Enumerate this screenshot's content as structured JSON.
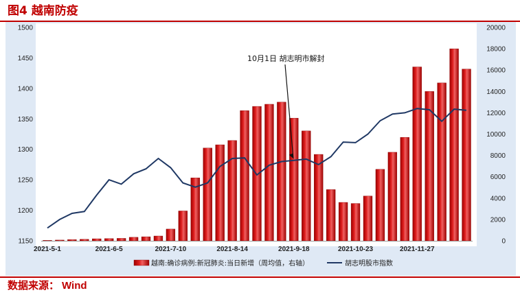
{
  "header": {
    "title": "图4 越南防疫"
  },
  "footer": {
    "source_label": "数据来源：",
    "source_value": "Wind"
  },
  "colors": {
    "accent": "#c00000",
    "bar": "#c00000",
    "line": "#1f3864",
    "panel": "#dfe9f5"
  },
  "chart_data": {
    "type": "bar+line",
    "title": "",
    "x_tick_labels": [
      "2021-5-1",
      "2021-6-5",
      "2021-7-10",
      "2021-8-14",
      "2021-9-18",
      "2021-10-23",
      "2021-11-27"
    ],
    "x_tick_positions": [
      0,
      5,
      10,
      15,
      20,
      25,
      30
    ],
    "left_axis": {
      "ylim": [
        1150,
        1500
      ],
      "ticks": [
        1150,
        1200,
        1250,
        1300,
        1350,
        1400,
        1450,
        1500
      ]
    },
    "right_axis": {
      "ylim": [
        0,
        20000
      ],
      "ticks": [
        0,
        2000,
        4000,
        6000,
        8000,
        10000,
        12000,
        14000,
        16000,
        18000,
        20000
      ]
    },
    "annotation": {
      "text": "10月1日 胡志明市解封",
      "at_index": 20
    },
    "legend": {
      "position": "bottom"
    },
    "series": [
      {
        "name": "越南:确诊病例:新冠肺炎:当日新增（周均值，右轴）",
        "type": "bar",
        "axis": "right",
        "values": [
          40,
          70,
          110,
          140,
          190,
          210,
          230,
          330,
          380,
          450,
          1100,
          2800,
          5900,
          8700,
          9000,
          9400,
          12200,
          12600,
          12800,
          13000,
          11500,
          10300,
          8100,
          4800,
          3600,
          3500,
          4200,
          6700,
          8300,
          9700,
          16300,
          14000,
          14800,
          18000,
          16100
        ]
      },
      {
        "name": "胡志明股市指数",
        "type": "line",
        "axis": "left",
        "values": [
          1171,
          1185,
          1195,
          1198,
          1225,
          1250,
          1243,
          1260,
          1268,
          1285,
          1270,
          1245,
          1238,
          1245,
          1272,
          1285,
          1286,
          1258,
          1274,
          1280,
          1282,
          1284,
          1275,
          1288,
          1312,
          1311,
          1325,
          1347,
          1358,
          1360,
          1367,
          1365,
          1346,
          1366,
          1364
        ]
      }
    ]
  }
}
